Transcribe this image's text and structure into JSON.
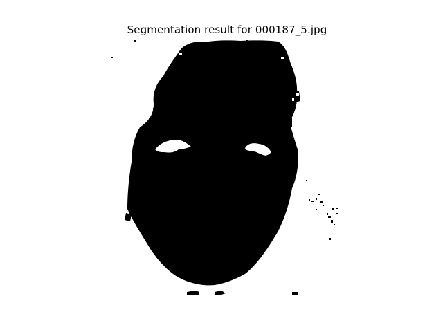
{
  "figure": {
    "title": "Segmentation result for 000187_5.jpg"
  },
  "image": {
    "description_icon": "segmentation-mask-icon",
    "foreground_color": "#000000",
    "background_color": "#ffffff"
  }
}
